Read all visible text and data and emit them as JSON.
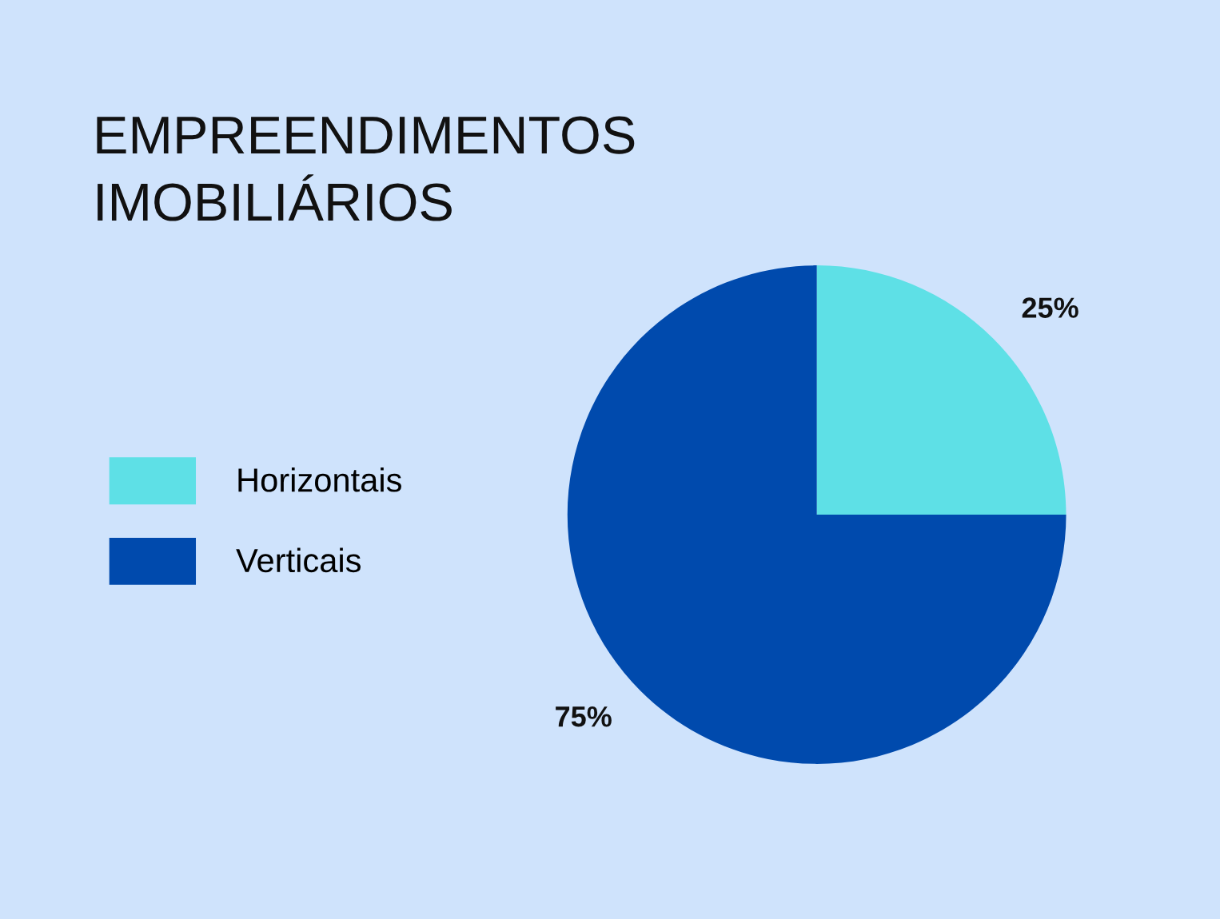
{
  "chart_data": {
    "type": "pie",
    "title": "EMPREENDIMENTOS\nIMOBILIÁRIOS",
    "categories": [
      "Horizontais",
      "Verticais"
    ],
    "values": [
      25,
      75
    ],
    "colors": [
      "#5ee0e6",
      "#004aad"
    ],
    "value_labels": [
      "25%",
      "75%"
    ],
    "legend": "left"
  }
}
